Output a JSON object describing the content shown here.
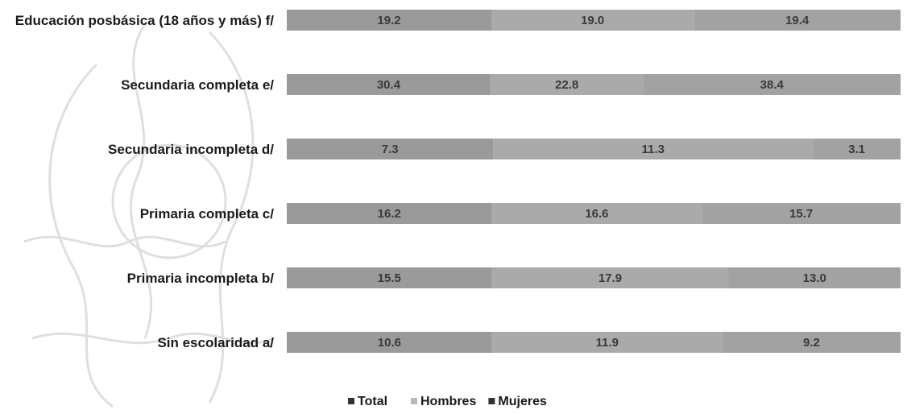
{
  "chart_data": {
    "type": "bar",
    "orientation": "horizontal",
    "stacked": true,
    "categories": [
      "Educación posbásica (18 años y más) f/",
      "Secundaria completa e/",
      "Secundaria incompleta d/",
      "Primaria completa c/",
      "Primaria incompleta b/",
      "Sin escolaridad a/"
    ],
    "series": [
      {
        "name": "Total",
        "color": "#9a9a9a",
        "values": [
          19.2,
          30.4,
          7.3,
          16.2,
          15.5,
          10.6
        ]
      },
      {
        "name": "Hombres",
        "color": "#aaaaaa",
        "values": [
          19.0,
          22.8,
          11.3,
          16.6,
          17.9,
          11.9
        ]
      },
      {
        "name": "Mujeres",
        "color": "#a2a2a2",
        "values": [
          19.4,
          38.4,
          3.1,
          15.7,
          13.0,
          9.2
        ]
      }
    ],
    "legend_position": "bottom",
    "grid": false,
    "title": "",
    "xlabel": "",
    "ylabel": ""
  }
}
